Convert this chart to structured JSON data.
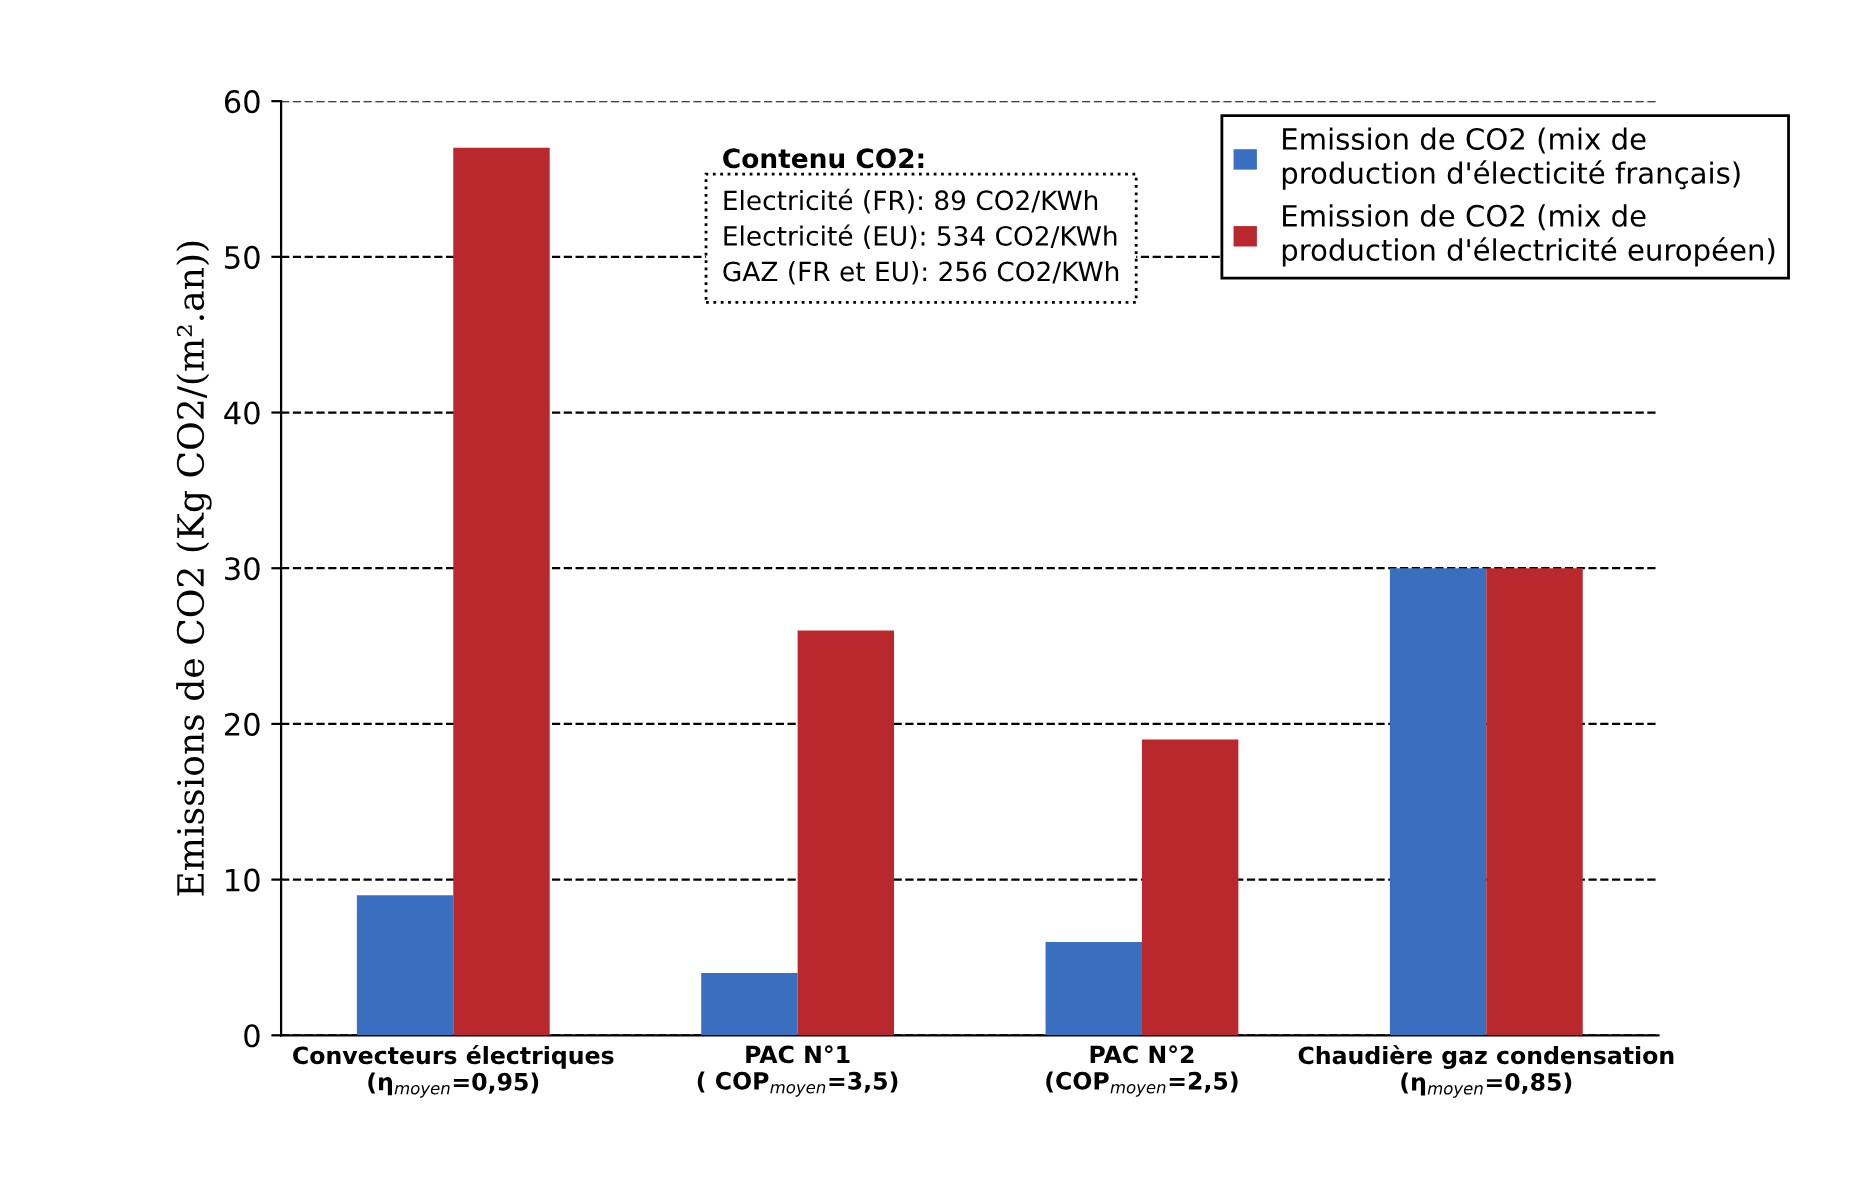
{
  "chart_data": {
    "type": "bar",
    "ylabel": "Emissions de CO2 (Kg CO2/(m².an))",
    "categories": [
      "Convecteurs électriques\n(η$_{moyen}$=0,95)",
      "PAC N°1\n( COP$_{moyen}$=3,5)",
      "PAC N°2\n(COP$_{moyen}$=2,5)",
      "Chaudière gaz condensation\n(η$_{moyen}$=0,85)"
    ],
    "series": [
      {
        "name": "Emission de CO2 (mix de\nproduction d'électicité français)",
        "color": "#3a6fbf",
        "values": [
          9,
          4,
          6,
          30
        ]
      },
      {
        "name": "Emission de CO2 (mix de\nproduction d'électricité européen)",
        "color": "#b9282c",
        "values": [
          57,
          26,
          19,
          30
        ]
      }
    ],
    "ylim": [
      0,
      60
    ],
    "yticks": [
      0,
      10,
      20,
      30,
      40,
      50,
      60
    ],
    "grid": "y",
    "legend": "top right",
    "annotations": [
      "Contenu CO2:",
      "Electricité (FR): 89 CO2/KWh\nElectricité (EU): 534 CO2/KWh\nGAZ (FR et EU): 256 CO2/KWh"
    ]
  }
}
